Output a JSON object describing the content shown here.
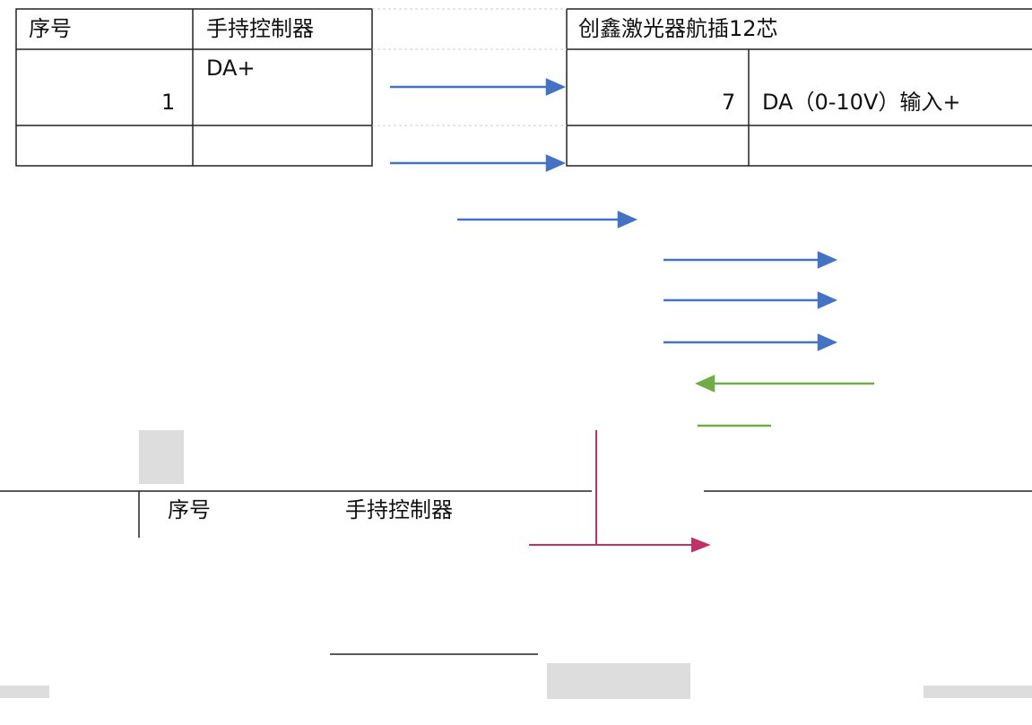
{
  "top_table": {
    "headers": [
      "序号",
      "手持控制器",
      "创鑫激光器航插12芯"
    ],
    "rows": [
      [
        "1",
        "DA+",
        "7",
        "DA（0-10V）输入+"
      ]
    ]
  },
  "bottom_table": {
    "headers": [
      "序号",
      "手持控制器"
    ]
  }
}
